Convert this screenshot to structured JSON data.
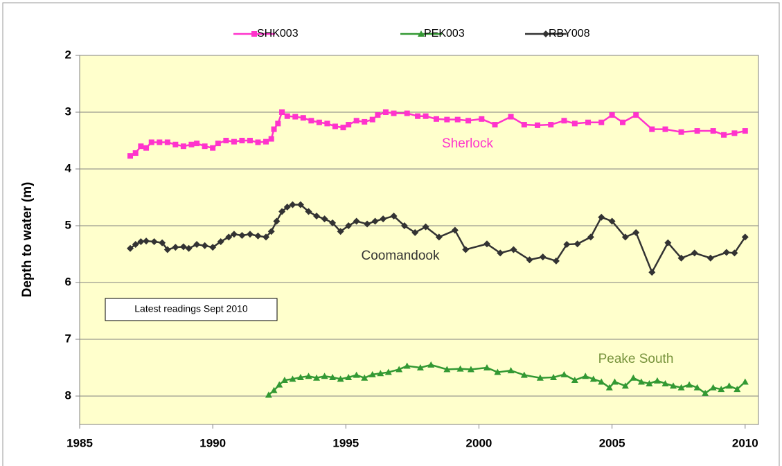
{
  "chart_data": {
    "type": "line",
    "y_label": "Depth to water (m)",
    "xlim": [
      1985,
      2010.5
    ],
    "xticks": [
      1985,
      1990,
      1995,
      2000,
      2005,
      2010
    ],
    "ylim": [
      2,
      8.5
    ],
    "yticks": [
      2,
      3,
      4,
      5,
      6,
      7,
      8
    ],
    "y_inverted": true,
    "grid": true,
    "plot_background": "#ffffcc",
    "legend": "top",
    "series": [
      {
        "name": "SHK003",
        "color": "#ff33cc",
        "marker": "square",
        "x": [
          1986.9,
          1987.1,
          1987.3,
          1987.5,
          1987.7,
          1988,
          1988.3,
          1988.6,
          1988.9,
          1989.2,
          1989.4,
          1989.7,
          1990,
          1990.2,
          1990.5,
          1990.8,
          1991.1,
          1991.4,
          1991.7,
          1992,
          1992.2,
          1992.3,
          1992.45,
          1992.6,
          1992.8,
          1993.1,
          1993.4,
          1993.7,
          1994,
          1994.3,
          1994.6,
          1994.9,
          1995.1,
          1995.4,
          1995.7,
          1996,
          1996.2,
          1996.5,
          1996.8,
          1997.3,
          1997.7,
          1998,
          1998.4,
          1998.8,
          1999.2,
          1999.6,
          2000.1,
          2000.6,
          2001.2,
          2001.7,
          2002.2,
          2002.7,
          2003.2,
          2003.6,
          2004.1,
          2004.6,
          2005,
          2005.4,
          2005.9,
          2006.5,
          2007,
          2007.6,
          2008.2,
          2008.8,
          2009.2,
          2009.6,
          2010
        ],
        "values": [
          3.77,
          3.72,
          3.6,
          3.63,
          3.53,
          3.53,
          3.53,
          3.57,
          3.6,
          3.57,
          3.55,
          3.6,
          3.63,
          3.55,
          3.5,
          3.52,
          3.5,
          3.5,
          3.53,
          3.52,
          3.47,
          3.3,
          3.2,
          3.0,
          3.07,
          3.08,
          3.1,
          3.15,
          3.18,
          3.2,
          3.25,
          3.27,
          3.22,
          3.15,
          3.17,
          3.13,
          3.05,
          3.0,
          3.02,
          3.02,
          3.07,
          3.07,
          3.12,
          3.13,
          3.13,
          3.15,
          3.12,
          3.22,
          3.08,
          3.22,
          3.23,
          3.22,
          3.15,
          3.2,
          3.18,
          3.18,
          3.05,
          3.18,
          3.05,
          3.3,
          3.3,
          3.35,
          3.33,
          3.33,
          3.4,
          3.37,
          3.33
        ]
      },
      {
        "name": "PEK003",
        "color": "#339933",
        "marker": "triangle",
        "x": [
          1992.1,
          1992.3,
          1992.5,
          1992.7,
          1993,
          1993.3,
          1993.6,
          1993.9,
          1994.2,
          1994.5,
          1994.8,
          1995.1,
          1995.4,
          1995.7,
          1996,
          1996.3,
          1996.6,
          1997,
          1997.3,
          1997.8,
          1998.2,
          1998.8,
          1999.3,
          1999.7,
          2000.3,
          2000.7,
          2001.2,
          2001.7,
          2002.3,
          2002.8,
          2003.2,
          2003.6,
          2004,
          2004.3,
          2004.6,
          2004.9,
          2005.1,
          2005.5,
          2005.8,
          2006.1,
          2006.4,
          2006.7,
          2007,
          2007.3,
          2007.6,
          2007.9,
          2008.2,
          2008.5,
          2008.8,
          2009.1,
          2009.4,
          2009.7,
          2010
        ],
        "values": [
          7.98,
          7.9,
          7.8,
          7.72,
          7.7,
          7.67,
          7.65,
          7.68,
          7.65,
          7.67,
          7.7,
          7.67,
          7.63,
          7.68,
          7.62,
          7.6,
          7.58,
          7.53,
          7.47,
          7.5,
          7.45,
          7.53,
          7.52,
          7.53,
          7.5,
          7.58,
          7.55,
          7.63,
          7.68,
          7.67,
          7.62,
          7.72,
          7.65,
          7.7,
          7.75,
          7.85,
          7.75,
          7.82,
          7.68,
          7.75,
          7.78,
          7.73,
          7.78,
          7.82,
          7.85,
          7.8,
          7.85,
          7.95,
          7.85,
          7.88,
          7.82,
          7.88,
          7.75
        ]
      },
      {
        "name": "RBY008",
        "color": "#333333",
        "marker": "diamond",
        "x": [
          1986.9,
          1987.1,
          1987.3,
          1987.5,
          1987.8,
          1988.1,
          1988.3,
          1988.6,
          1988.9,
          1989.1,
          1989.4,
          1989.7,
          1990,
          1990.3,
          1990.6,
          1990.8,
          1991.1,
          1991.4,
          1991.7,
          1992,
          1992.2,
          1992.4,
          1992.6,
          1992.8,
          1993,
          1993.3,
          1993.6,
          1993.9,
          1994.2,
          1994.5,
          1994.8,
          1995.1,
          1995.4,
          1995.8,
          1996.1,
          1996.4,
          1996.8,
          1997.2,
          1997.6,
          1998,
          1998.5,
          1999.1,
          1999.5,
          2000.3,
          2000.8,
          2001.3,
          2001.9,
          2002.4,
          2002.9,
          2003.3,
          2003.7,
          2004.2,
          2004.6,
          2005,
          2005.5,
          2005.9,
          2006.5,
          2007.1,
          2007.6,
          2008.1,
          2008.7,
          2009.3,
          2009.6,
          2010
        ],
        "values": [
          5.4,
          5.33,
          5.28,
          5.27,
          5.28,
          5.3,
          5.42,
          5.38,
          5.37,
          5.4,
          5.33,
          5.35,
          5.38,
          5.28,
          5.2,
          5.15,
          5.17,
          5.15,
          5.18,
          5.2,
          5.1,
          4.92,
          4.75,
          4.67,
          4.63,
          4.63,
          4.75,
          4.83,
          4.88,
          4.95,
          5.1,
          5.0,
          4.92,
          4.97,
          4.92,
          4.88,
          4.83,
          5.0,
          5.12,
          5.02,
          5.2,
          5.08,
          5.42,
          5.32,
          5.48,
          5.42,
          5.6,
          5.55,
          5.62,
          5.33,
          5.32,
          5.2,
          4.85,
          4.92,
          5.2,
          5.12,
          5.82,
          5.3,
          5.57,
          5.48,
          5.57,
          5.47,
          5.48,
          5.2
        ]
      }
    ],
    "annotations": [
      {
        "text": "Sherlock",
        "color": "#ff33cc"
      },
      {
        "text": "Coomandook",
        "color": "#333333"
      },
      {
        "text": "Peake South",
        "color": "#77933c"
      },
      {
        "text": "Latest readings  Sept 2010",
        "color": "#000000",
        "boxed": true
      }
    ]
  }
}
